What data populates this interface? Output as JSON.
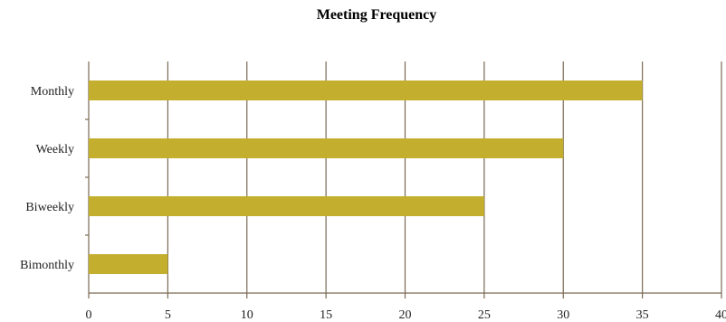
{
  "chart_data": {
    "type": "bar",
    "orientation": "horizontal",
    "title": "Meeting Frequency",
    "xlabel": "",
    "ylabel": "",
    "categories": [
      "Monthly",
      "Weekly",
      "Biweekly",
      "Bimonthly"
    ],
    "values": [
      35,
      30,
      25,
      5
    ],
    "xlim": [
      0,
      40
    ],
    "x_ticks": [
      0,
      5,
      10,
      15,
      20,
      25,
      30,
      35,
      40
    ],
    "grid": "vertical",
    "legend": "none",
    "colors": {
      "bar": "#c4ae2d",
      "grid": "#7a6a55",
      "axis": "#7a6a55"
    }
  }
}
